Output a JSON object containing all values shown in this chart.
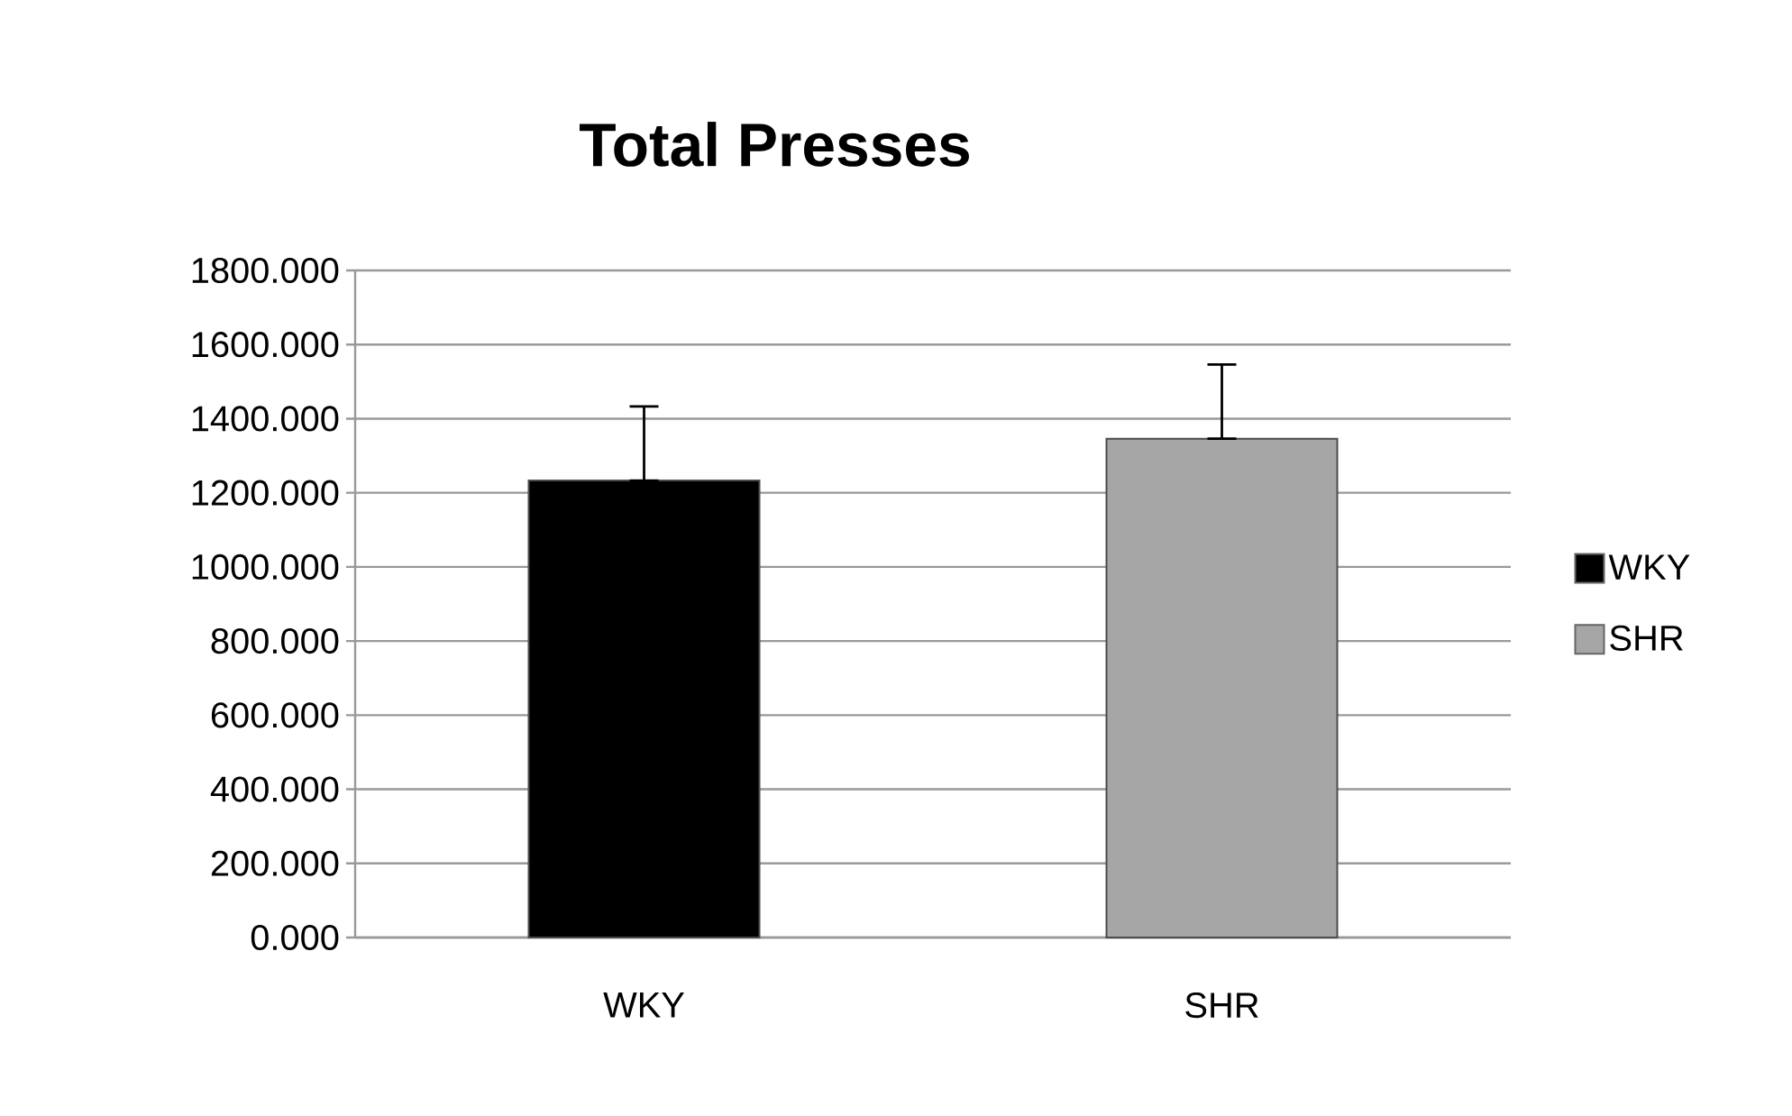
{
  "chart_data": {
    "type": "bar",
    "title": "Total Presses",
    "categories": [
      "WKY",
      "SHR"
    ],
    "series": [
      {
        "name": "WKY",
        "color": "#000000",
        "values": [
          1233,
          null
        ],
        "errors": [
          [
            1233,
            1433
          ],
          null
        ]
      },
      {
        "name": "SHR",
        "color": "#a6a6a6",
        "values": [
          null,
          1346
        ],
        "errors": [
          null,
          [
            1346,
            1546
          ]
        ]
      }
    ],
    "ylim": [
      0,
      1800
    ],
    "yticks": [
      {
        "value": 0,
        "label": "0.000"
      },
      {
        "value": 200,
        "label": "200.000"
      },
      {
        "value": 400,
        "label": "400.000"
      },
      {
        "value": 600,
        "label": "600.000"
      },
      {
        "value": 800,
        "label": "800.000"
      },
      {
        "value": 1000,
        "label": "1000.000"
      },
      {
        "value": 1200,
        "label": "1200.000"
      },
      {
        "value": 1400,
        "label": "1400.000"
      },
      {
        "value": 1600,
        "label": "1600.000"
      },
      {
        "value": 1800,
        "label": "1800.000"
      }
    ],
    "grid": "y",
    "legend": "right"
  }
}
